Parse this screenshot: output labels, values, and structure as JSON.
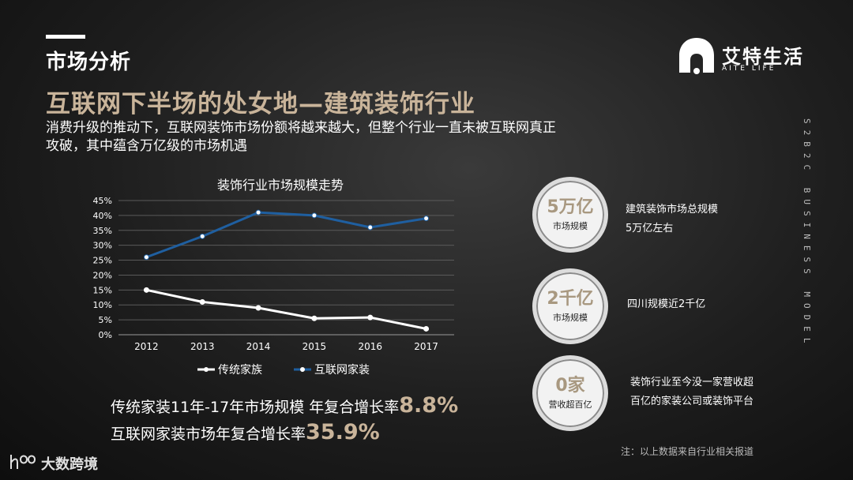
{
  "header": {
    "section_title": "市场分析",
    "headline": "互联网下半场的处女地—建筑装饰行业",
    "description": "消费升级的推动下，互联网装饰市场份额将越来越大，但整个行业一直未被互联网真正攻破，其中蕴含万亿级的市场机遇"
  },
  "logo": {
    "name": "艾特生活",
    "sub": "AITE LIFE"
  },
  "side_label": "S2B2C BUSINESS MODEL",
  "chart_data": {
    "type": "line",
    "title": "装饰行业市场规模走势",
    "categories": [
      "2012",
      "2013",
      "2014",
      "2015",
      "2016",
      "2017"
    ],
    "y_ticks": [
      "0%",
      "5%",
      "10%",
      "15%",
      "20%",
      "25%",
      "30%",
      "35%",
      "40%",
      "45%"
    ],
    "ylim": [
      0,
      45
    ],
    "grid": true,
    "legend": "bottom",
    "series": [
      {
        "name": "传统家族",
        "values": [
          15,
          11,
          9,
          5.5,
          5.8,
          2
        ],
        "color": "#ffffff"
      },
      {
        "name": "互联网家装",
        "values": [
          26,
          33,
          41,
          40,
          36,
          39
        ],
        "color": "#1f5fa0"
      }
    ]
  },
  "stats": {
    "line1_text": "传统家装11年-17年市场规模 年复合增长率",
    "line1_value": "8.8%",
    "line2_text": "互联网家装市场年复合增长率",
    "line2_value": "35.9%"
  },
  "circles": [
    {
      "value": "5万亿",
      "label": "市场规模",
      "desc_1": "建筑装饰市场总规模",
      "desc_2": "5万亿左右"
    },
    {
      "value": "2千亿",
      "label": "市场规模",
      "desc_1": "四川规模近2千亿",
      "desc_2": ""
    },
    {
      "value": "0家",
      "label": "营收超百亿",
      "desc_1": "装饰行业至今没一家营收超",
      "desc_2": "百亿的家装公司或装饰平台"
    }
  ],
  "note": "注：以上数据来自行业相关报道",
  "watermark": "大数跨境",
  "colors": {
    "accent": "#c9b49a",
    "blue_series": "#1f5fa0"
  }
}
